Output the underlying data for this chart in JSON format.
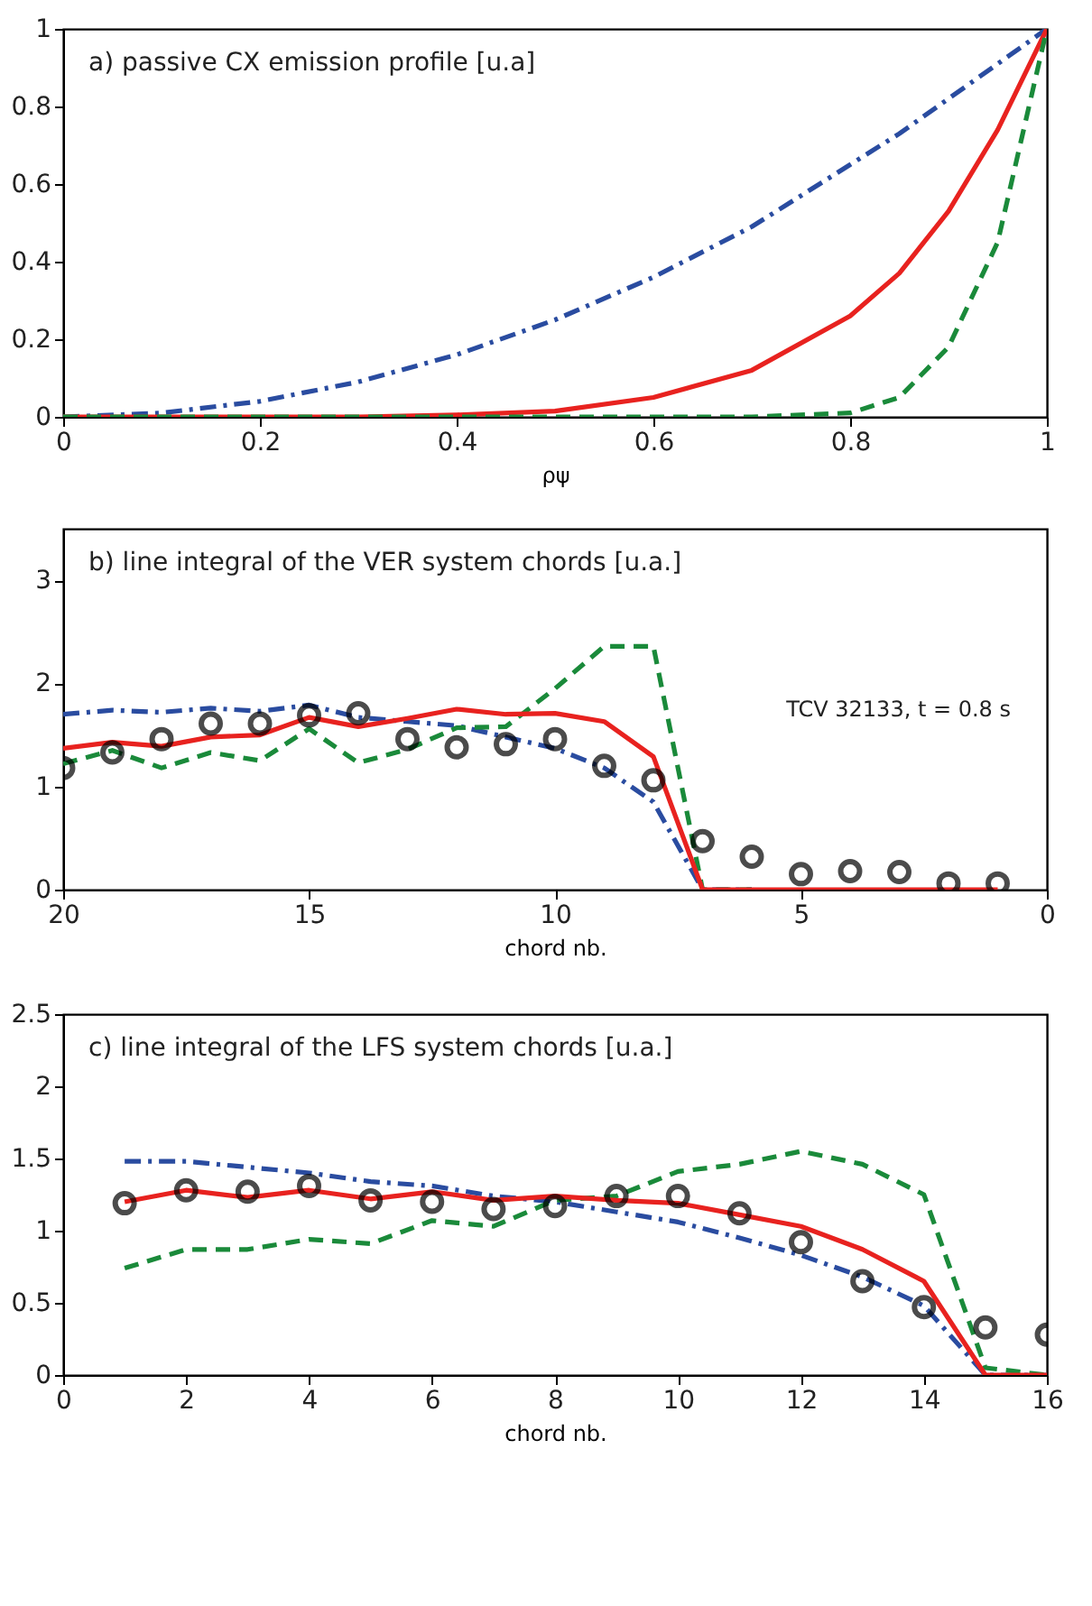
{
  "chart_data": [
    {
      "type": "line",
      "title": "a) passive CX emission profile [u.a]",
      "xlabel": "ρψ",
      "x": [
        0,
        0.1,
        0.2,
        0.3,
        0.4,
        0.5,
        0.6,
        0.7,
        0.8,
        0.85,
        0.9,
        0.95,
        1
      ],
      "series": [
        {
          "color": "#2a4ca0",
          "line_style": "dashdot",
          "values": [
            0,
            0.01,
            0.04,
            0.09,
            0.16,
            0.25,
            0.36,
            0.49,
            0.65,
            0.73,
            0.82,
            0.91,
            1
          ]
        },
        {
          "color": "#e8221f",
          "line_style": "solid",
          "values": [
            0,
            0,
            0,
            0,
            0.005,
            0.015,
            0.05,
            0.12,
            0.26,
            0.37,
            0.53,
            0.74,
            1
          ]
        },
        {
          "color": "#1a8a3a",
          "line_style": "dashed",
          "values": [
            0,
            0,
            0,
            0,
            0,
            0,
            0,
            0,
            0.01,
            0.05,
            0.18,
            0.45,
            1
          ]
        }
      ],
      "xlim": [
        0,
        1
      ],
      "ylim": [
        0,
        1
      ],
      "xticks": [
        0,
        0.2,
        0.4,
        0.6,
        0.8,
        1
      ],
      "yticks": [
        0,
        0.2,
        0.4,
        0.6,
        0.8,
        1
      ],
      "grid": false,
      "legend": false
    },
    {
      "type": "line",
      "title": "b) line integral of the VER system chords [u.a.]",
      "xlabel": "chord nb.",
      "x": [
        20,
        19,
        18,
        17,
        16,
        15,
        14,
        13,
        12,
        11,
        10,
        9,
        8,
        7,
        6,
        5,
        4,
        3,
        2,
        1
      ],
      "series": [
        {
          "color": "#2a4ca0",
          "line_style": "dashdot",
          "values": [
            1.7,
            1.74,
            1.72,
            1.76,
            1.73,
            1.79,
            1.67,
            1.63,
            1.59,
            1.48,
            1.37,
            1.18,
            0.85,
            0,
            0,
            null,
            null,
            null,
            null,
            null
          ]
        },
        {
          "color": "#1a8a3a",
          "line_style": "dashed",
          "values": [
            1.22,
            1.35,
            1.18,
            1.33,
            1.25,
            1.56,
            1.23,
            1.36,
            1.57,
            1.58,
            1.95,
            2.36,
            2.36,
            0,
            0,
            null,
            null,
            null,
            null,
            null
          ]
        },
        {
          "color": "#e8221f",
          "line_style": "solid",
          "values": [
            1.37,
            1.43,
            1.39,
            1.48,
            1.5,
            1.67,
            1.58,
            1.66,
            1.75,
            1.7,
            1.71,
            1.63,
            1.29,
            0,
            0,
            0,
            0,
            0,
            0,
            0
          ]
        },
        {
          "type": "scatter",
          "color": "#000000",
          "marker": "circle",
          "values": [
            1.18,
            1.33,
            1.46,
            1.61,
            1.61,
            1.69,
            1.71,
            1.46,
            1.38,
            1.41,
            1.46,
            1.2,
            1.06,
            0.47,
            0.32,
            0.15,
            0.18,
            0.17,
            0.06,
            0.06
          ]
        }
      ],
      "annotations": [
        "TCV 32133, t = 0.8 s"
      ],
      "xlim": [
        20,
        0
      ],
      "ylim": [
        0,
        3.5
      ],
      "xticks": [
        20,
        15,
        10,
        5,
        0
      ],
      "yticks": [
        0,
        1,
        2,
        3
      ],
      "grid": false,
      "legend": false
    },
    {
      "type": "line",
      "title": "c) line integral of the LFS system chords [u.a.]",
      "xlabel": "chord nb.",
      "x": [
        1,
        2,
        3,
        4,
        5,
        6,
        7,
        8,
        9,
        10,
        11,
        12,
        13,
        14,
        15,
        16
      ],
      "series": [
        {
          "color": "#2a4ca0",
          "line_style": "dashdot",
          "values": [
            1.48,
            1.48,
            1.44,
            1.4,
            1.34,
            1.31,
            1.24,
            1.2,
            1.13,
            1.06,
            0.95,
            0.83,
            0.68,
            0.48,
            0,
            0
          ]
        },
        {
          "color": "#1a8a3a",
          "line_style": "dashed",
          "values": [
            0.74,
            0.87,
            0.87,
            0.94,
            0.91,
            1.07,
            1.03,
            1.21,
            1.24,
            1.41,
            1.46,
            1.55,
            1.46,
            1.25,
            0.05,
            0
          ]
        },
        {
          "color": "#e8221f",
          "line_style": "solid",
          "values": [
            1.2,
            1.28,
            1.23,
            1.28,
            1.22,
            1.27,
            1.21,
            1.24,
            1.21,
            1.19,
            1.11,
            1.03,
            0.87,
            0.65,
            0,
            0
          ]
        },
        {
          "type": "scatter",
          "color": "#000000",
          "marker": "circle",
          "values": [
            1.19,
            1.28,
            1.27,
            1.31,
            1.21,
            1.2,
            1.15,
            1.17,
            1.24,
            1.24,
            1.12,
            0.92,
            0.65,
            0.47,
            0.33,
            0.28
          ]
        }
      ],
      "xlim": [
        0,
        16
      ],
      "ylim": [
        0,
        2.5
      ],
      "xticks": [
        0,
        2,
        4,
        6,
        8,
        10,
        12,
        14,
        16
      ],
      "yticks": [
        0,
        0.5,
        1,
        1.5,
        2,
        2.5
      ],
      "grid": false,
      "legend": false
    }
  ]
}
